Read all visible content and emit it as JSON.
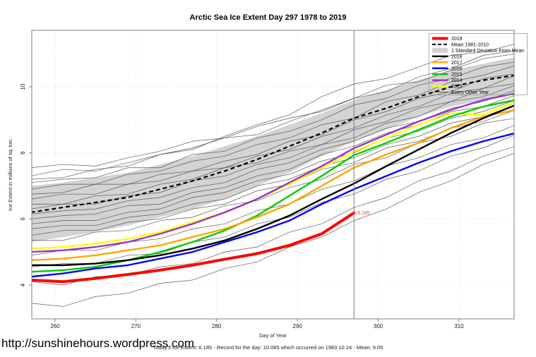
{
  "title": "Arctic Sea Ice Extent Day 297 1978 to 2019",
  "footer": {
    "url": "http://sunshinehours.wordpress.com",
    "caption": "Today's Ice Extent: 6.185  - Record for the day: 10.085 which occurred on 1983 10 24  - Mean: 9.05"
  },
  "legend": {
    "items": [
      {
        "label": "2019",
        "color": "#FF0000",
        "style": "line",
        "width": 4
      },
      {
        "label": "Mean 1981-2010",
        "color": "#000000",
        "style": "dashed",
        "width": 2.2
      },
      {
        "label": "1 Standard Deviation From Mean",
        "color": "#D3D3D3",
        "style": "band"
      },
      {
        "label": "2018",
        "color": "#000000",
        "style": "line",
        "width": 2.4
      },
      {
        "label": "2017",
        "color": "#FFA500",
        "style": "line",
        "width": 2.4
      },
      {
        "label": "2016",
        "color": "#0000FF",
        "style": "line",
        "width": 2.4
      },
      {
        "label": "2015",
        "color": "#00CD00",
        "style": "line",
        "width": 2.4
      },
      {
        "label": "2014",
        "color": "#9932CC",
        "style": "line",
        "width": 2.4
      },
      {
        "label": "2013",
        "color": "#FFFF00",
        "style": "line",
        "width": 2.4
      },
      {
        "label": "Every Other Year",
        "color": "#474747",
        "style": "line",
        "width": 0.8
      }
    ]
  },
  "chart_data": {
    "type": "line",
    "title": "Arctic Sea Ice Extent Day 297 1978 to 2019",
    "xlabel": "Day of Year",
    "ylabel": "Ice Extent in millions of sq. km.",
    "xlim": [
      257,
      317
    ],
    "ylim": [
      3.0,
      11.7
    ],
    "x_ticks": [
      260,
      270,
      280,
      290,
      300,
      310
    ],
    "y_ticks": [
      4,
      6,
      8,
      10
    ],
    "grid": true,
    "legend_position": "top-right",
    "vline": {
      "x": 297,
      "color": "#808080"
    },
    "annotation": {
      "x": 297,
      "y": 6.185,
      "label": "6.185",
      "color": "#FF3333"
    },
    "x": [
      257,
      261,
      265,
      269,
      273,
      277,
      281,
      285,
      289,
      293,
      297,
      301,
      305,
      309,
      313,
      317
    ],
    "band": {
      "name": "1 Standard Deviation From Mean",
      "color": "#D3D3D3",
      "upper": [
        7.0,
        7.1,
        7.25,
        7.4,
        7.65,
        7.9,
        8.2,
        8.5,
        8.85,
        9.2,
        9.6,
        9.9,
        10.2,
        10.5,
        10.7,
        10.9
      ],
      "lower": [
        5.3,
        5.45,
        5.6,
        5.8,
        6.05,
        6.3,
        6.6,
        7.0,
        7.4,
        7.9,
        8.35,
        8.7,
        9.1,
        9.4,
        9.6,
        9.8
      ]
    },
    "mean": {
      "name": "Mean 1981-2010",
      "color": "#000000",
      "dashed": true,
      "values": [
        6.2,
        6.35,
        6.5,
        6.65,
        6.9,
        7.15,
        7.45,
        7.8,
        8.2,
        8.6,
        9.05,
        9.35,
        9.7,
        10.0,
        10.2,
        10.35
      ]
    },
    "series": [
      {
        "name": "2013",
        "color": "#FFFF00",
        "width": 2.4,
        "values": [
          5.1,
          5.15,
          5.25,
          5.4,
          5.6,
          5.9,
          6.2,
          6.6,
          7.05,
          7.55,
          8.04,
          8.45,
          8.85,
          9.2,
          9.15,
          9.55
        ]
      },
      {
        "name": "2014",
        "color": "#9932CC",
        "width": 2.4,
        "values": [
          5.0,
          5.05,
          5.15,
          5.3,
          5.55,
          5.85,
          6.2,
          6.6,
          7.1,
          7.6,
          8.14,
          8.55,
          8.95,
          9.3,
          9.6,
          9.8
        ]
      },
      {
        "name": "2015",
        "color": "#00CD00",
        "width": 2.4,
        "values": [
          4.4,
          4.45,
          4.55,
          4.75,
          5.0,
          5.3,
          5.65,
          6.1,
          6.7,
          7.3,
          7.93,
          8.3,
          8.7,
          9.1,
          9.4,
          9.6
        ]
      },
      {
        "name": "2016",
        "color": "#0000FF",
        "width": 2.4,
        "values": [
          4.25,
          4.35,
          4.5,
          4.6,
          4.8,
          5.0,
          5.3,
          5.6,
          5.95,
          6.45,
          6.9,
          7.3,
          7.7,
          8.05,
          8.35,
          8.6
        ]
      },
      {
        "name": "2017",
        "color": "#FFA500",
        "width": 2.4,
        "values": [
          4.75,
          4.8,
          4.9,
          5.05,
          5.2,
          5.45,
          5.7,
          6.05,
          6.45,
          7.0,
          7.55,
          7.95,
          8.3,
          8.75,
          9.1,
          9.3
        ]
      },
      {
        "name": "2018",
        "color": "#000000",
        "width": 2.4,
        "values": [
          4.6,
          4.6,
          4.65,
          4.75,
          4.9,
          5.1,
          5.35,
          5.7,
          6.1,
          6.6,
          7.07,
          7.6,
          8.1,
          8.6,
          9.05,
          9.45
        ]
      },
      {
        "name": "2019",
        "color": "#FF0000",
        "width": 4,
        "values": [
          4.15,
          4.1,
          4.2,
          4.32,
          4.45,
          4.6,
          4.78,
          4.95,
          5.2,
          5.55,
          6.185
        ]
      }
    ],
    "background_years": {
      "name": "Every Other Year",
      "color": "#474747",
      "record_note": "Record for the day: 10.085 which occurred on 1983 10 24",
      "lines": [
        [
          7.55,
          7.65,
          7.6,
          7.85,
          8.05,
          8.35,
          8.45,
          8.8,
          9.05,
          9.25,
          9.65,
          9.85,
          10.3,
          10.55,
          10.95,
          11.1
        ],
        [
          7.3,
          7.5,
          7.45,
          7.7,
          7.95,
          8.15,
          8.45,
          8.55,
          8.95,
          9.3,
          9.65,
          10.05,
          10.15,
          10.5,
          10.85,
          11.0
        ],
        [
          7.2,
          7.25,
          7.5,
          7.6,
          7.95,
          8.1,
          8.5,
          8.85,
          9.15,
          9.7,
          10.085,
          10.25,
          10.6,
          10.95,
          11.05,
          11.3
        ],
        [
          7.1,
          7.2,
          7.25,
          7.55,
          7.55,
          7.95,
          8.05,
          8.45,
          8.65,
          9.0,
          9.45,
          9.65,
          10.05,
          10.25,
          10.6,
          10.75
        ],
        [
          6.9,
          7.05,
          7.05,
          7.35,
          7.45,
          7.75,
          7.9,
          8.25,
          8.45,
          8.85,
          9.05,
          9.55,
          9.75,
          10.15,
          10.35,
          10.65
        ],
        [
          6.75,
          6.8,
          7.05,
          7.05,
          7.35,
          7.45,
          7.75,
          7.95,
          8.35,
          8.55,
          9.0,
          9.25,
          9.65,
          9.85,
          10.25,
          10.4
        ],
        [
          6.6,
          6.75,
          6.75,
          7.05,
          7.15,
          7.45,
          7.55,
          7.9,
          8.1,
          8.5,
          8.75,
          9.15,
          9.4,
          9.8,
          9.95,
          10.35
        ],
        [
          6.45,
          6.45,
          6.7,
          6.75,
          7.05,
          7.2,
          7.55,
          7.7,
          8.05,
          8.25,
          8.7,
          8.95,
          9.35,
          9.55,
          9.95,
          10.1
        ],
        [
          6.3,
          6.45,
          6.45,
          6.7,
          6.8,
          7.15,
          7.3,
          7.65,
          7.85,
          8.25,
          8.45,
          8.9,
          9.1,
          9.55,
          9.7,
          10.05
        ],
        [
          6.15,
          6.25,
          6.3,
          6.55,
          6.65,
          6.95,
          7.1,
          7.5,
          7.7,
          8.1,
          8.35,
          8.75,
          8.95,
          9.35,
          9.55,
          9.9
        ],
        [
          6.0,
          6.1,
          6.15,
          6.4,
          6.45,
          6.8,
          6.95,
          7.3,
          7.5,
          7.95,
          8.2,
          8.6,
          8.85,
          9.25,
          9.4,
          9.75
        ],
        [
          5.85,
          5.95,
          5.95,
          6.2,
          6.3,
          6.65,
          6.8,
          7.15,
          7.35,
          7.75,
          8.0,
          8.45,
          8.65,
          9.05,
          9.25,
          9.6
        ],
        [
          5.7,
          5.8,
          5.8,
          6.05,
          6.15,
          6.45,
          6.6,
          7.0,
          7.2,
          7.6,
          7.85,
          8.25,
          8.5,
          8.9,
          9.1,
          9.45
        ],
        [
          5.5,
          5.65,
          5.65,
          5.9,
          6.0,
          6.3,
          6.45,
          6.85,
          7.05,
          7.5,
          7.7,
          8.15,
          8.35,
          8.75,
          8.95,
          9.3
        ],
        [
          5.35,
          5.35,
          5.6,
          5.65,
          5.95,
          6.05,
          6.4,
          6.55,
          6.95,
          7.2,
          7.65,
          7.85,
          8.3,
          8.5,
          8.9,
          9.05
        ],
        [
          4.9,
          5.05,
          5.05,
          5.3,
          5.4,
          5.7,
          5.85,
          6.25,
          6.45,
          6.9,
          7.15,
          7.6,
          7.85,
          8.25,
          8.45,
          8.85
        ],
        [
          4.55,
          4.65,
          4.65,
          4.9,
          4.95,
          5.3,
          5.45,
          5.85,
          6.05,
          6.5,
          6.75,
          7.2,
          7.45,
          7.9,
          8.15,
          8.55
        ],
        [
          4.1,
          4.0,
          4.25,
          4.3,
          4.55,
          4.65,
          5.0,
          5.15,
          5.6,
          5.85,
          6.35,
          6.65,
          7.15,
          7.45,
          7.9,
          8.2
        ],
        [
          3.45,
          3.35,
          3.65,
          3.75,
          4.05,
          4.15,
          4.5,
          4.7,
          5.15,
          5.45,
          5.95,
          6.3,
          6.8,
          7.15,
          7.65,
          8.0
        ]
      ]
    }
  }
}
